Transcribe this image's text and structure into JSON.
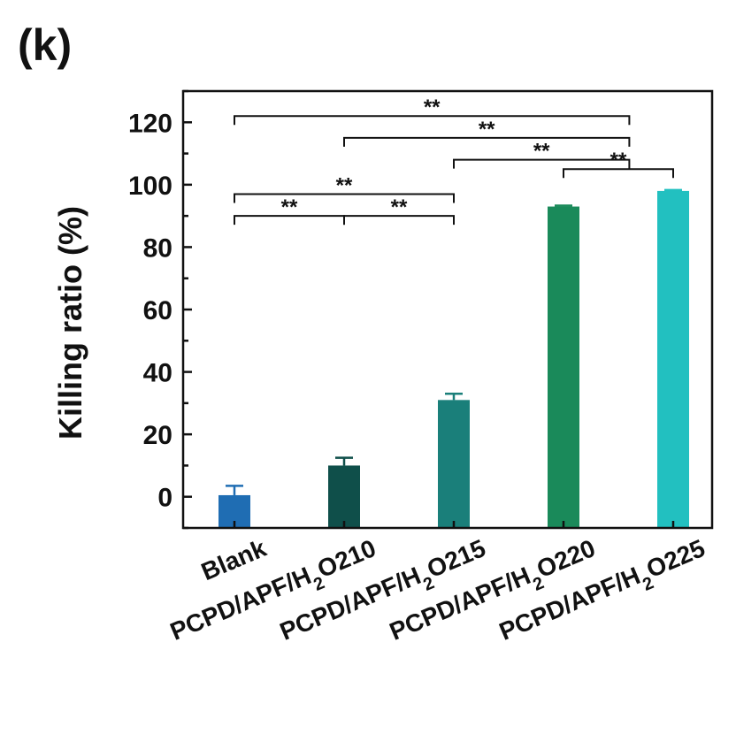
{
  "panel_label": "(k)",
  "chart_data": {
    "type": "bar",
    "title": "",
    "xlabel": "",
    "ylabel": "Killing ratio (%)",
    "ylim": [
      -10,
      130
    ],
    "yticks": [
      0,
      20,
      40,
      60,
      80,
      100,
      120
    ],
    "categories": [
      {
        "prefix": "Blank",
        "sub": "",
        "suffix": ""
      },
      {
        "prefix": "PCPD/APF/H",
        "sub": "2",
        "suffix": "O210"
      },
      {
        "prefix": "PCPD/APF/H",
        "sub": "2",
        "suffix": "O215"
      },
      {
        "prefix": "PCPD/APF/H",
        "sub": "2",
        "suffix": "O220"
      },
      {
        "prefix": "PCPD/APF/H",
        "sub": "2",
        "suffix": "O225"
      }
    ],
    "values": [
      0.5,
      10,
      31,
      93,
      98
    ],
    "errors": [
      3,
      2.5,
      2,
      0.3,
      0.3
    ],
    "colors": [
      "#1f6db3",
      "#0f4f4a",
      "#1a7f7a",
      "#1a8a5a",
      "#22c0c0"
    ],
    "significance": [
      {
        "from": 0,
        "to": 1,
        "label": "**",
        "y": 90
      },
      {
        "from": 1,
        "to": 2,
        "label": "**",
        "y": 90
      },
      {
        "from": 0,
        "to": 2,
        "label": "**",
        "y": 97
      },
      {
        "from": 3,
        "to": 4,
        "label": "**",
        "y": 105
      },
      {
        "from": 2,
        "to": 3.6,
        "label": "**",
        "y": 108
      },
      {
        "from": 1,
        "to": 3.6,
        "label": "**",
        "y": 115
      },
      {
        "from": 0,
        "to": 3.6,
        "label": "**",
        "y": 122
      }
    ]
  }
}
